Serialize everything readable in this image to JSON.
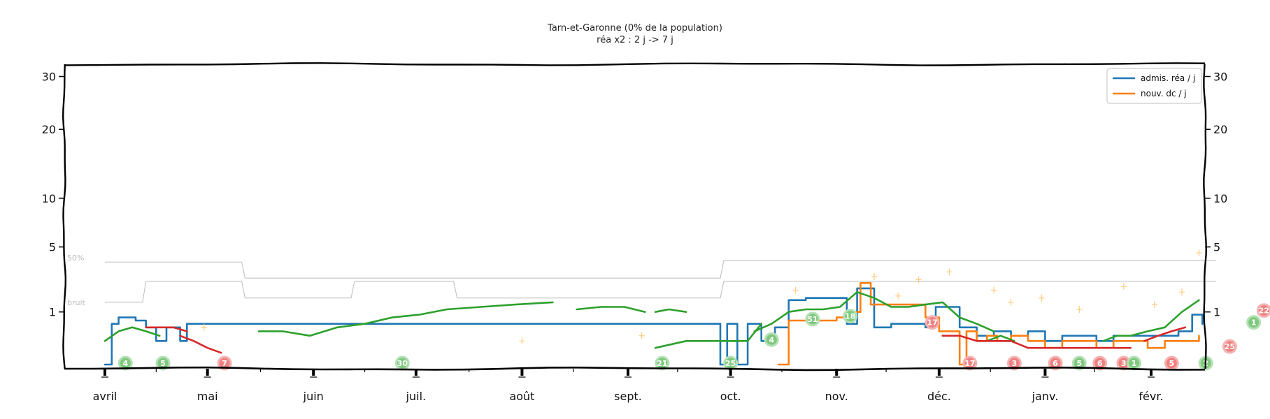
{
  "chart_data": {
    "type": "line",
    "title": "Tarn-et-Garonne (0% de la population)",
    "subtitle": "réa x2 : 2 j -> 7 j",
    "y_ticks": [
      1,
      5,
      10,
      20,
      30
    ],
    "ylim": [
      0,
      32
    ],
    "scale": "sqrt",
    "x_ticks": [
      "avril",
      "mai",
      "juin",
      "juil.",
      "août",
      "sept.",
      "oct.",
      "nov.",
      "déc.",
      "janv.",
      "févr."
    ],
    "xlim": [
      0,
      325
    ],
    "month_positions": [
      0,
      30,
      61,
      91,
      122,
      153,
      183,
      214,
      244,
      275,
      306
    ],
    "legend": {
      "position": "top-right",
      "entries": [
        {
          "label": "admis. réa / j",
          "color": "#1f77b4"
        },
        {
          "label": "nouv. dc / j",
          "color": "#ff7f0e"
        }
      ]
    },
    "annotation_labels": [
      "50%",
      "bruit"
    ],
    "colors": {
      "rea": "#1f77b4",
      "dc": "#ff7f0e",
      "green": "#2ca02c",
      "red": "#d62728",
      "band": "#bbbbbb",
      "cross": "#ffcc80"
    },
    "series": [
      {
        "name": "admis. réa / j",
        "color": "#1f77b4",
        "x": [
          0,
          2,
          4,
          7,
          9,
          12,
          15,
          18,
          22,
          24,
          180,
          182,
          185,
          188,
          192,
          196,
          200,
          205,
          210,
          213,
          217,
          220,
          225,
          230,
          235,
          240,
          243,
          247,
          250,
          255,
          260,
          265,
          270,
          275,
          280,
          285,
          290,
          295,
          300,
          305,
          310,
          314,
          318,
          321
        ],
        "values": [
          0,
          0.6,
          0.8,
          0.8,
          0.7,
          0.5,
          0.2,
          0.5,
          0.2,
          0.6,
          0,
          0.6,
          0,
          0.6,
          0.2,
          0.5,
          1.5,
          1.6,
          1.6,
          1.6,
          0.6,
          2.1,
          0.5,
          0.6,
          0.6,
          0.5,
          1.2,
          1.2,
          0.5,
          0.3,
          0.4,
          0.3,
          0.4,
          0.2,
          0.3,
          0.3,
          0.2,
          0.3,
          0.3,
          0.3,
          0.3,
          0.4,
          0.9,
          0.6
        ]
      },
      {
        "name": "nouv. dc / j",
        "color": "#ff7f0e",
        "x": [
          197,
          200,
          203,
          206,
          210,
          214,
          218,
          221,
          224,
          228,
          232,
          236,
          240,
          244,
          248,
          250,
          252,
          255,
          258,
          261,
          265,
          270,
          275,
          280,
          285,
          290,
          295,
          300,
          305,
          310,
          315,
          320
        ],
        "values": [
          0,
          0.7,
          0.7,
          0.7,
          0.7,
          0.8,
          1.0,
          2.4,
          1.3,
          1.3,
          1.3,
          1.3,
          0.8,
          0.4,
          0.4,
          0,
          0.4,
          0.2,
          0.3,
          0.2,
          0.3,
          0.2,
          0.1,
          0.2,
          0.2,
          0.1,
          0.2,
          0.2,
          0.1,
          0.2,
          0.2,
          0.3
        ]
      },
      {
        "color": "#2ca02c",
        "segments": [
          {
            "x": [
              0,
              4,
              8,
              12,
              16
            ],
            "values": [
              0.2,
              0.4,
              0.5,
              0.4,
              0.3
            ]
          },
          {
            "x": [
              45,
              52,
              60,
              68,
              76,
              84
            ],
            "values": [
              0.4,
              0.4,
              0.3,
              0.5,
              0.6,
              0.8
            ]
          },
          {
            "x": [
              84,
              92,
              100,
              110,
              120,
              131
            ],
            "values": [
              0.8,
              0.9,
              1.1,
              1.2,
              1.3,
              1.4
            ]
          },
          {
            "x": [
              138,
              145,
              152,
              158
            ],
            "values": [
              1.1,
              1.2,
              1.2,
              1.0
            ]
          },
          {
            "x": [
              161,
              165,
              170
            ],
            "values": [
              1.0,
              1.1,
              1.0
            ]
          },
          {
            "x": [
              161,
              170,
              178,
              185
            ],
            "values": [
              0.1,
              0.2,
              0.2,
              0.2
            ]
          },
          {
            "x": [
              183,
              188,
              192
            ],
            "values": [
              0.2,
              0.2,
              0.6
            ]
          },
          {
            "x": [
              190,
              195,
              200,
              205,
              210,
              215,
              220,
              225,
              230,
              235,
              240,
              245,
              250,
              255,
              260
            ],
            "values": [
              0.4,
              0.6,
              1.0,
              1.1,
              1.1,
              1.2,
              1.9,
              1.6,
              1.2,
              1.2,
              1.3,
              1.4,
              0.8,
              0.6,
              0.4
            ]
          },
          {
            "x": [
              258,
              262,
              266
            ],
            "values": [
              0.2,
              0.3,
              0.2
            ]
          },
          {
            "x": [
              292,
              296,
              300,
              305,
              310,
              315,
              320
            ],
            "values": [
              0.2,
              0.3,
              0.3,
              0.4,
              0.5,
              1.0,
              1.5
            ]
          }
        ]
      },
      {
        "color": "#d62728",
        "segments": [
          {
            "x": [
              12,
              16,
              20,
              24
            ],
            "values": [
              0.5,
              0.5,
              0.5,
              0.4
            ]
          },
          {
            "x": [
              22,
              26,
              30,
              34
            ],
            "values": [
              0.3,
              0.2,
              0.1,
              0.05
            ]
          },
          {
            "x": [
              245,
              250,
              255,
              260
            ],
            "values": [
              0.3,
              0.3,
              0.2,
              0.2
            ]
          },
          {
            "x": [
              260,
              265,
              270,
              280,
              290,
              300
            ],
            "values": [
              0.2,
              0.2,
              0.1,
              0.1,
              0.1,
              0.1
            ]
          },
          {
            "x": [
              304,
              308,
              312,
              316
            ],
            "values": [
              0.2,
              0.3,
              0.4,
              0.5
            ]
          }
        ]
      }
    ],
    "band_50": {
      "x": [
        0,
        40,
        41,
        180,
        181,
        325
      ],
      "values": [
        3.8,
        3.8,
        2.7,
        2.7,
        3.9,
        3.9
      ]
    },
    "band_noise": {
      "x": [
        0,
        11,
        12,
        40,
        41,
        72,
        73,
        102,
        103,
        180,
        181,
        325
      ],
      "values": [
        1.4,
        1.4,
        2.5,
        2.5,
        1.6,
        1.6,
        2.5,
        2.5,
        1.6,
        1.6,
        2.5,
        2.5
      ]
    },
    "badges": [
      {
        "x": 6,
        "y": 0,
        "label": "4",
        "kind": "green"
      },
      {
        "x": 17,
        "y": 0,
        "label": "5",
        "kind": "green"
      },
      {
        "x": 35,
        "y": 0,
        "label": "7",
        "kind": "red"
      },
      {
        "x": 87,
        "y": 0,
        "label": "30",
        "kind": "green"
      },
      {
        "x": 163,
        "y": 0,
        "label": "21",
        "kind": "green"
      },
      {
        "x": 183,
        "y": 0,
        "label": "25",
        "kind": "green"
      },
      {
        "x": 195,
        "y": 0.2,
        "label": "4",
        "kind": "green"
      },
      {
        "x": 207,
        "y": 0.7,
        "label": "51",
        "kind": "green"
      },
      {
        "x": 218,
        "y": 0.8,
        "label": "18",
        "kind": "green"
      },
      {
        "x": 242,
        "y": 0.6,
        "label": "17",
        "kind": "red"
      },
      {
        "x": 253,
        "y": 0,
        "label": "17",
        "kind": "red"
      },
      {
        "x": 266,
        "y": 0,
        "label": "3",
        "kind": "red"
      },
      {
        "x": 278,
        "y": 0,
        "label": "6",
        "kind": "red"
      },
      {
        "x": 285,
        "y": 0,
        "label": "5",
        "kind": "green"
      },
      {
        "x": 291,
        "y": 0,
        "label": "6",
        "kind": "red"
      },
      {
        "x": 298,
        "y": 0,
        "label": "3",
        "kind": "red"
      },
      {
        "x": 301,
        "y": 0,
        "label": "1",
        "kind": "green"
      },
      {
        "x": 312,
        "y": 0,
        "label": "5",
        "kind": "red"
      },
      {
        "x": 322,
        "y": 0,
        "label": "2",
        "kind": "green"
      },
      {
        "x": 329,
        "y": 0.1,
        "label": "25",
        "kind": "red"
      },
      {
        "x": 336,
        "y": 0.6,
        "label": "1",
        "kind": "green"
      },
      {
        "x": 339,
        "y": 1.0,
        "label": "22",
        "kind": "red"
      }
    ],
    "crosses": [
      {
        "x": 29,
        "y": 0.5
      },
      {
        "x": 122,
        "y": 0.2
      },
      {
        "x": 157,
        "y": 0.3
      },
      {
        "x": 202,
        "y": 2.0
      },
      {
        "x": 225,
        "y": 2.8
      },
      {
        "x": 232,
        "y": 1.7
      },
      {
        "x": 238,
        "y": 2.6
      },
      {
        "x": 247,
        "y": 3.1
      },
      {
        "x": 260,
        "y": 2.0
      },
      {
        "x": 265,
        "y": 1.4
      },
      {
        "x": 274,
        "y": 1.6
      },
      {
        "x": 285,
        "y": 1.1
      },
      {
        "x": 298,
        "y": 2.2
      },
      {
        "x": 307,
        "y": 1.3
      },
      {
        "x": 315,
        "y": 1.9
      },
      {
        "x": 320,
        "y": 4.5
      }
    ]
  }
}
